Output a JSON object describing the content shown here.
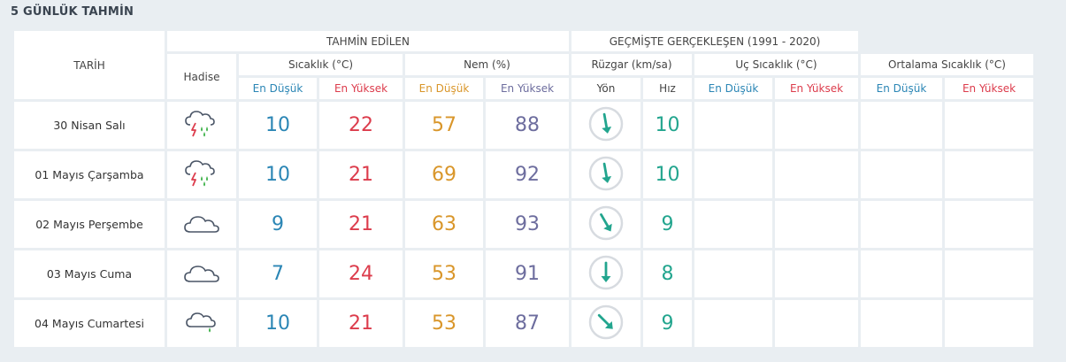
{
  "title": "5 GÜNLÜK TAHMİN",
  "header": {
    "date": "TARİH",
    "hadise": "Hadise",
    "tahmin": "TAHMİN EDİLEN",
    "gecmis": "GEÇMİŞTE GERÇEKLEŞEN (1991 - 2020)",
    "sicaklik": "Sıcaklık (°C)",
    "nem": "Nem (%)",
    "ruzgar": "Rüzgar (km/sa)",
    "uc_sicaklik": "Uç Sıcaklık (°C)",
    "ort_sicaklik": "Ortalama Sıcaklık (°C)",
    "en_dusuk": "En Düşük",
    "en_yuksek": "En Yüksek",
    "yon": "Yön",
    "hiz": "Hız"
  },
  "colors": {
    "low": "#2b86b5",
    "high": "#dc3c4c",
    "humidity_low": "#d9962a",
    "humidity_high": "#6d6d9e",
    "wind": "#22a58e"
  },
  "days": [
    {
      "date": "30 Nisan Salı",
      "icon": "thunderstorm-rain-icon",
      "temp_low": "10",
      "temp_high": "22",
      "hum_low": "57",
      "hum_high": "88",
      "wind_dir_deg": 170,
      "wind_speed": "10"
    },
    {
      "date": "01 Mayıs Çarşamba",
      "icon": "thunderstorm-rain-icon",
      "temp_low": "10",
      "temp_high": "21",
      "hum_low": "69",
      "hum_high": "92",
      "wind_dir_deg": 170,
      "wind_speed": "10"
    },
    {
      "date": "02 Mayıs Perşembe",
      "icon": "cloud-icon",
      "temp_low": "9",
      "temp_high": "21",
      "hum_low": "63",
      "hum_high": "93",
      "wind_dir_deg": 150,
      "wind_speed": "9"
    },
    {
      "date": "03 Mayıs Cuma",
      "icon": "cloud-icon",
      "temp_low": "7",
      "temp_high": "24",
      "hum_low": "53",
      "hum_high": "91",
      "wind_dir_deg": 180,
      "wind_speed": "8"
    },
    {
      "date": "04 Mayıs Cumartesi",
      "icon": "cloud-rain-icon",
      "temp_low": "10",
      "temp_high": "21",
      "hum_low": "53",
      "hum_high": "87",
      "wind_dir_deg": 135,
      "wind_speed": "9"
    }
  ]
}
